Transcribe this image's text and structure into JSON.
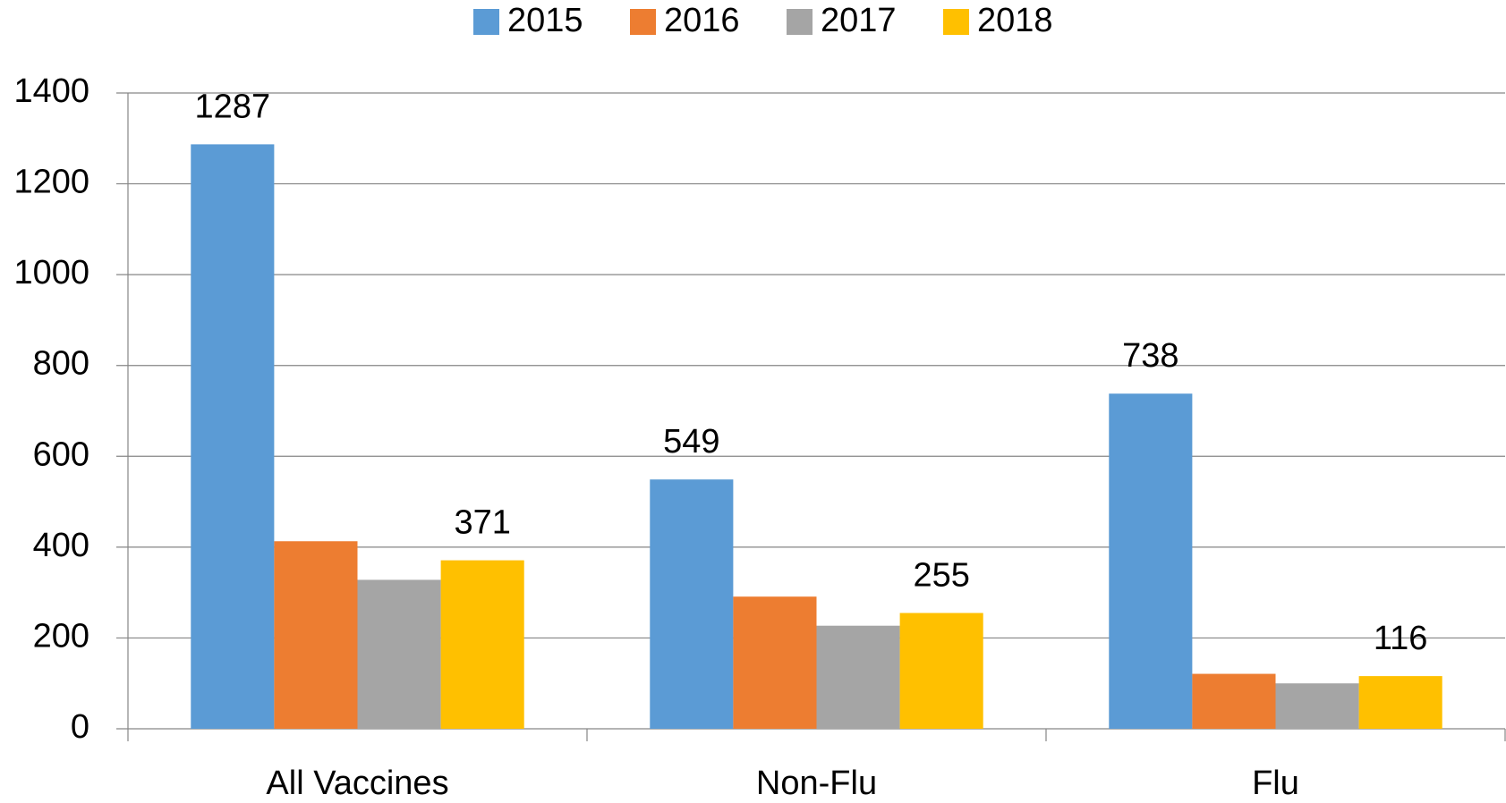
{
  "chart_data": {
    "type": "bar",
    "categories": [
      "All Vaccines",
      "Non-Flu",
      "Flu"
    ],
    "series": [
      {
        "name": "2015",
        "color": "#5b9bd5",
        "values": [
          1287,
          549,
          738
        ],
        "data_labels": true
      },
      {
        "name": "2016",
        "color": "#ed7d31",
        "values": [
          413,
          291,
          121
        ],
        "data_labels": false
      },
      {
        "name": "2017",
        "color": "#a5a5a5",
        "values": [
          328,
          227,
          100
        ],
        "data_labels": false
      },
      {
        "name": "2018",
        "color": "#ffc000",
        "values": [
          371,
          255,
          116
        ],
        "data_labels": true
      }
    ],
    "ylim": [
      0,
      1400
    ],
    "yticks": [
      0,
      200,
      400,
      600,
      800,
      1000,
      1200,
      1400
    ],
    "grid": true,
    "legend": "top"
  }
}
